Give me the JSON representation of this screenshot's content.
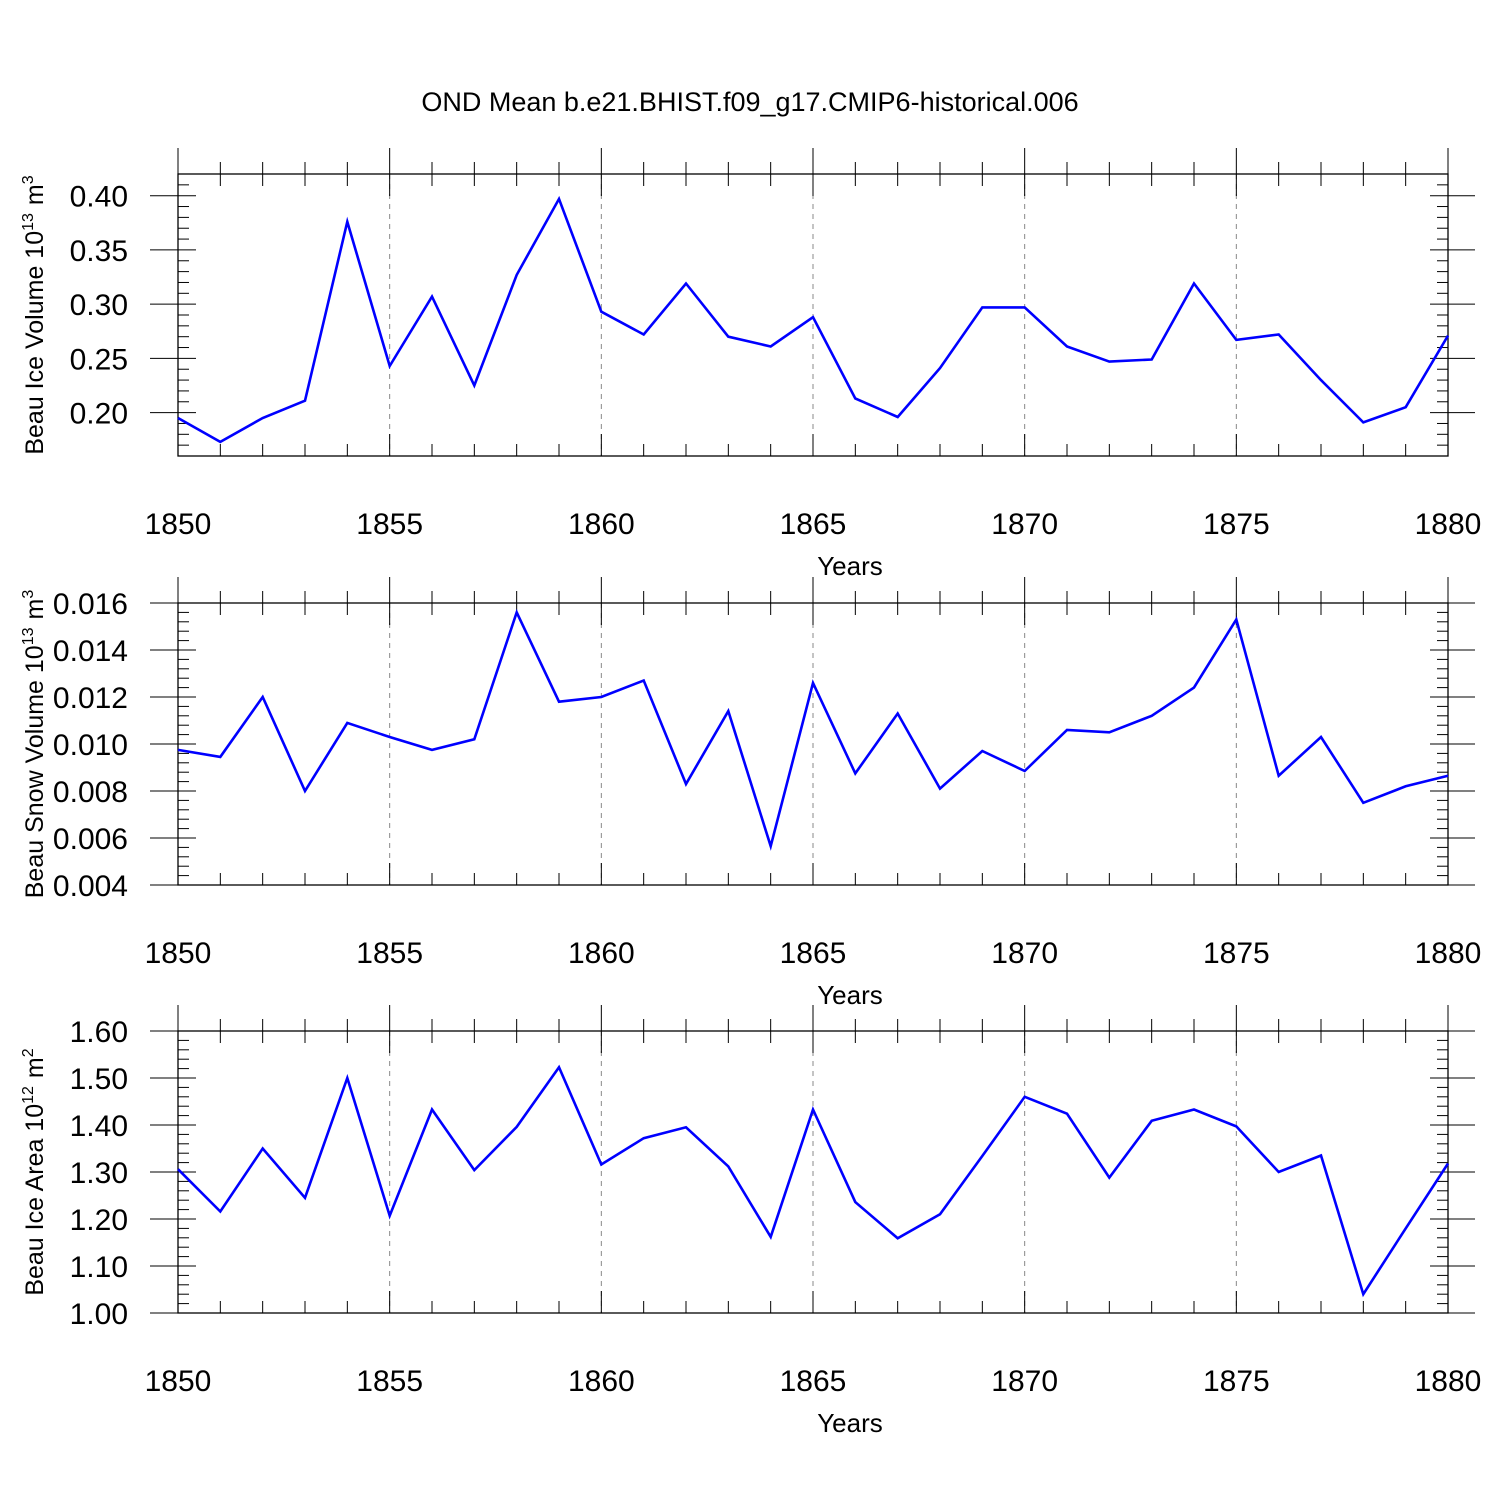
{
  "title": "OND Mean b.e21.BHIST.f09_g17.CMIP6-historical.006",
  "colors": {
    "line": "#0000ff",
    "axis": "#000000",
    "grid": "#888888"
  },
  "chart_data": [
    {
      "type": "line",
      "ylabel": "Beau Ice Volume 10",
      "ylabel_sup": "13",
      "ylabel_unit": "m",
      "ylabel_unit_sup": "3",
      "xlabel": "Years",
      "xlim": [
        1850,
        1880
      ],
      "ylim": [
        0.16,
        0.42
      ],
      "yticks": [
        0.2,
        0.25,
        0.3,
        0.35,
        0.4
      ],
      "ytick_labels": [
        "0.20",
        "0.25",
        "0.30",
        "0.35",
        "0.40"
      ],
      "xticks": [
        1850,
        1855,
        1860,
        1865,
        1870,
        1875,
        1880
      ],
      "xtick_labels": [
        "1850",
        "1855",
        "1860",
        "1865",
        "1870",
        "1875",
        "1880"
      ],
      "x": [
        1850,
        1851,
        1852,
        1853,
        1854,
        1855,
        1856,
        1857,
        1858,
        1859,
        1860,
        1861,
        1862,
        1863,
        1864,
        1865,
        1866,
        1867,
        1868,
        1869,
        1870,
        1871,
        1872,
        1873,
        1874,
        1875,
        1876,
        1877,
        1878,
        1879,
        1880
      ],
      "values": [
        0.195,
        0.173,
        0.195,
        0.211,
        0.376,
        0.243,
        0.307,
        0.225,
        0.327,
        0.397,
        0.293,
        0.272,
        0.319,
        0.27,
        0.261,
        0.288,
        0.213,
        0.196,
        0.241,
        0.297,
        0.297,
        0.261,
        0.247,
        0.249,
        0.319,
        0.267,
        0.272,
        0.23,
        0.191,
        0.205,
        0.271
      ]
    },
    {
      "type": "line",
      "ylabel": "Beau Snow Volume 10",
      "ylabel_sup": "13",
      "ylabel_unit": "m",
      "ylabel_unit_sup": "3",
      "xlabel": "Years",
      "xlim": [
        1850,
        1880
      ],
      "ylim": [
        0.004,
        0.016
      ],
      "yticks": [
        0.004,
        0.006,
        0.008,
        0.01,
        0.012,
        0.014,
        0.016
      ],
      "ytick_labels": [
        "0.004",
        "0.006",
        "0.008",
        "0.010",
        "0.012",
        "0.014",
        "0.016"
      ],
      "xticks": [
        1850,
        1855,
        1860,
        1865,
        1870,
        1875,
        1880
      ],
      "xtick_labels": [
        "1850",
        "1855",
        "1860",
        "1865",
        "1870",
        "1875",
        "1880"
      ],
      "x": [
        1850,
        1851,
        1852,
        1853,
        1854,
        1855,
        1856,
        1857,
        1858,
        1859,
        1860,
        1861,
        1862,
        1863,
        1864,
        1865,
        1866,
        1867,
        1868,
        1869,
        1870,
        1871,
        1872,
        1873,
        1874,
        1875,
        1876,
        1877,
        1878,
        1879,
        1880
      ],
      "values": [
        0.00975,
        0.00945,
        0.012,
        0.008,
        0.0109,
        0.0103,
        0.00975,
        0.0102,
        0.0156,
        0.0118,
        0.012,
        0.0127,
        0.0083,
        0.0114,
        0.00565,
        0.0126,
        0.00875,
        0.0113,
        0.0081,
        0.0097,
        0.00885,
        0.0106,
        0.0105,
        0.0112,
        0.0124,
        0.0153,
        0.00865,
        0.0103,
        0.0075,
        0.0082,
        0.00865
      ]
    },
    {
      "type": "line",
      "ylabel": "Beau Ice Area 10",
      "ylabel_sup": "12",
      "ylabel_unit": "m",
      "ylabel_unit_sup": "2",
      "xlabel": "Years",
      "xlim": [
        1850,
        1880
      ],
      "ylim": [
        1.0,
        1.6
      ],
      "yticks": [
        1.0,
        1.1,
        1.2,
        1.3,
        1.4,
        1.5,
        1.6
      ],
      "ytick_labels": [
        "1.00",
        "1.10",
        "1.20",
        "1.30",
        "1.40",
        "1.50",
        "1.60"
      ],
      "xticks": [
        1850,
        1855,
        1860,
        1865,
        1870,
        1875,
        1880
      ],
      "xtick_labels": [
        "1850",
        "1855",
        "1860",
        "1865",
        "1870",
        "1875",
        "1880"
      ],
      "x": [
        1850,
        1851,
        1852,
        1853,
        1854,
        1855,
        1856,
        1857,
        1858,
        1859,
        1860,
        1861,
        1862,
        1863,
        1864,
        1865,
        1866,
        1867,
        1868,
        1869,
        1870,
        1871,
        1872,
        1873,
        1874,
        1875,
        1876,
        1877,
        1878,
        1879,
        1880
      ],
      "values": [
        1.306,
        1.216,
        1.35,
        1.245,
        1.5,
        1.207,
        1.433,
        1.304,
        1.396,
        1.523,
        1.316,
        1.372,
        1.395,
        1.312,
        1.162,
        1.433,
        1.236,
        1.159,
        1.21,
        1.334,
        1.46,
        1.424,
        1.288,
        1.409,
        1.433,
        1.397,
        1.3,
        1.335,
        1.04,
        1.18,
        1.318
      ]
    }
  ]
}
